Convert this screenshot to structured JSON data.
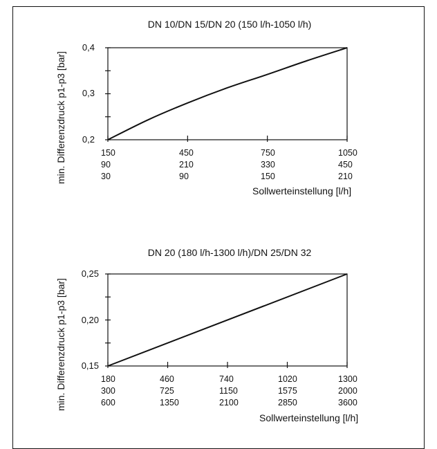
{
  "charts": [
    {
      "title": "DN 10/DN 15/DN 20 (150 l/h-1050 l/h)",
      "ylabel": "min. Differenzdruck p1-p3 [bar]",
      "xlabel": "Sollwerteinstellung [l/h]",
      "yticks": [
        "0,4",
        "0,3",
        "0,2"
      ],
      "xtick_rows": [
        [
          "150",
          "450",
          "750",
          "1050"
        ],
        [
          "90",
          "210",
          "330",
          "450"
        ],
        [
          "30",
          "90",
          "150",
          "210"
        ]
      ]
    },
    {
      "title": "DN 20 (180 l/h-1300 l/h)/DN 25/DN 32",
      "ylabel": "min. Differenzdruck p1-p3 [bar]",
      "xlabel": "Sollwerteinstellung [l/h]",
      "yticks": [
        "0,25",
        "0,20",
        "0,15"
      ],
      "xtick_rows": [
        [
          "180",
          "460",
          "740",
          "1020",
          "1300"
        ],
        [
          "300",
          "725",
          "1150",
          "1575",
          "2000"
        ],
        [
          "600",
          "1350",
          "2100",
          "2850",
          "3600"
        ]
      ]
    }
  ],
  "chart_data": [
    {
      "type": "line",
      "title": "DN 10/DN 15/DN 20 (150 l/h-1050 l/h)",
      "xlabel": "Sollwerteinstellung [l/h]",
      "ylabel": "min. Differenzdruck p1-p3 [bar]",
      "xlim": [
        150,
        1050
      ],
      "ylim": [
        0.2,
        0.4
      ],
      "series": [
        {
          "x": [
            150,
            300,
            450,
            600,
            750,
            900,
            1050
          ],
          "y": [
            0.2,
            0.243,
            0.28,
            0.313,
            0.342,
            0.372,
            0.4
          ]
        }
      ],
      "grid": false
    },
    {
      "type": "line",
      "title": "DN 20 (180 l/h-1300 l/h)/DN 25/DN 32",
      "xlabel": "Sollwerteinstellung [l/h]",
      "ylabel": "min. Differenzdruck p1-p3 [bar]",
      "xlim": [
        180,
        1300
      ],
      "ylim": [
        0.15,
        0.25
      ],
      "series": [
        {
          "x": [
            180,
            1300
          ],
          "y": [
            0.15,
            0.25
          ]
        }
      ],
      "grid": false
    }
  ]
}
